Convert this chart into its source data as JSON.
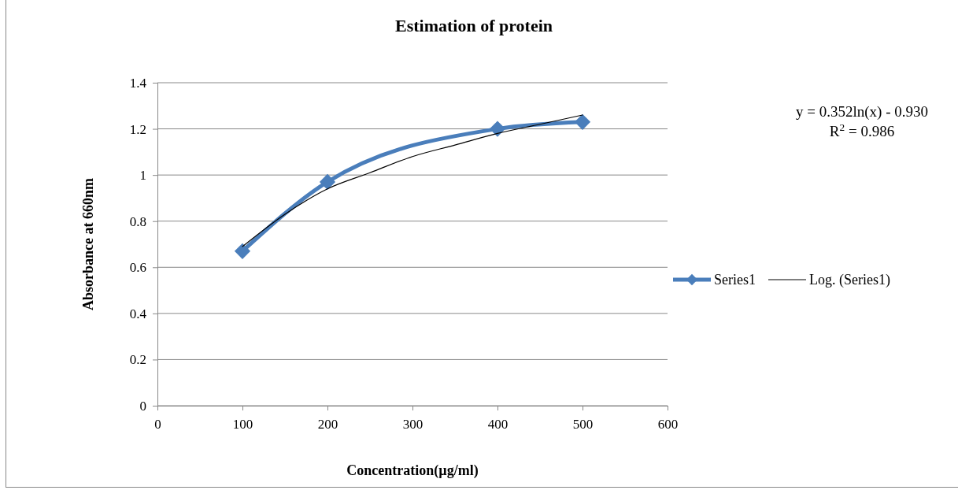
{
  "chart_data": {
    "type": "line",
    "title": "Estimation of protein",
    "xlabel": "Concentration(µg/ml)",
    "ylabel": "Absorbance at 660nm",
    "xlim": [
      0,
      600
    ],
    "xticks": [
      0,
      100,
      200,
      300,
      400,
      500,
      600
    ],
    "ylim": [
      0,
      1.4
    ],
    "yticks": [
      0,
      0.2,
      0.4,
      0.6,
      0.8,
      1,
      1.2,
      1.4
    ],
    "grid": "y",
    "legend": "right",
    "marker": "diamond",
    "series": [
      {
        "name": "Series1",
        "color": "#4a7ebb",
        "x": [
          100,
          200,
          400,
          500
        ],
        "values": [
          0.67,
          0.97,
          1.2,
          1.23
        ]
      },
      {
        "name": "Log. (Series1)",
        "color": "#000000",
        "marker": "none",
        "x": [
          100,
          150,
          200,
          250,
          300,
          350,
          400,
          450,
          500
        ],
        "values": [
          0.69,
          0.83,
          0.94,
          1.01,
          1.08,
          1.13,
          1.18,
          1.22,
          1.26
        ]
      }
    ],
    "annotations": [
      "y = 0.352ln(x) - 0.930",
      "R$^{2}$ = 0.986"
    ]
  }
}
